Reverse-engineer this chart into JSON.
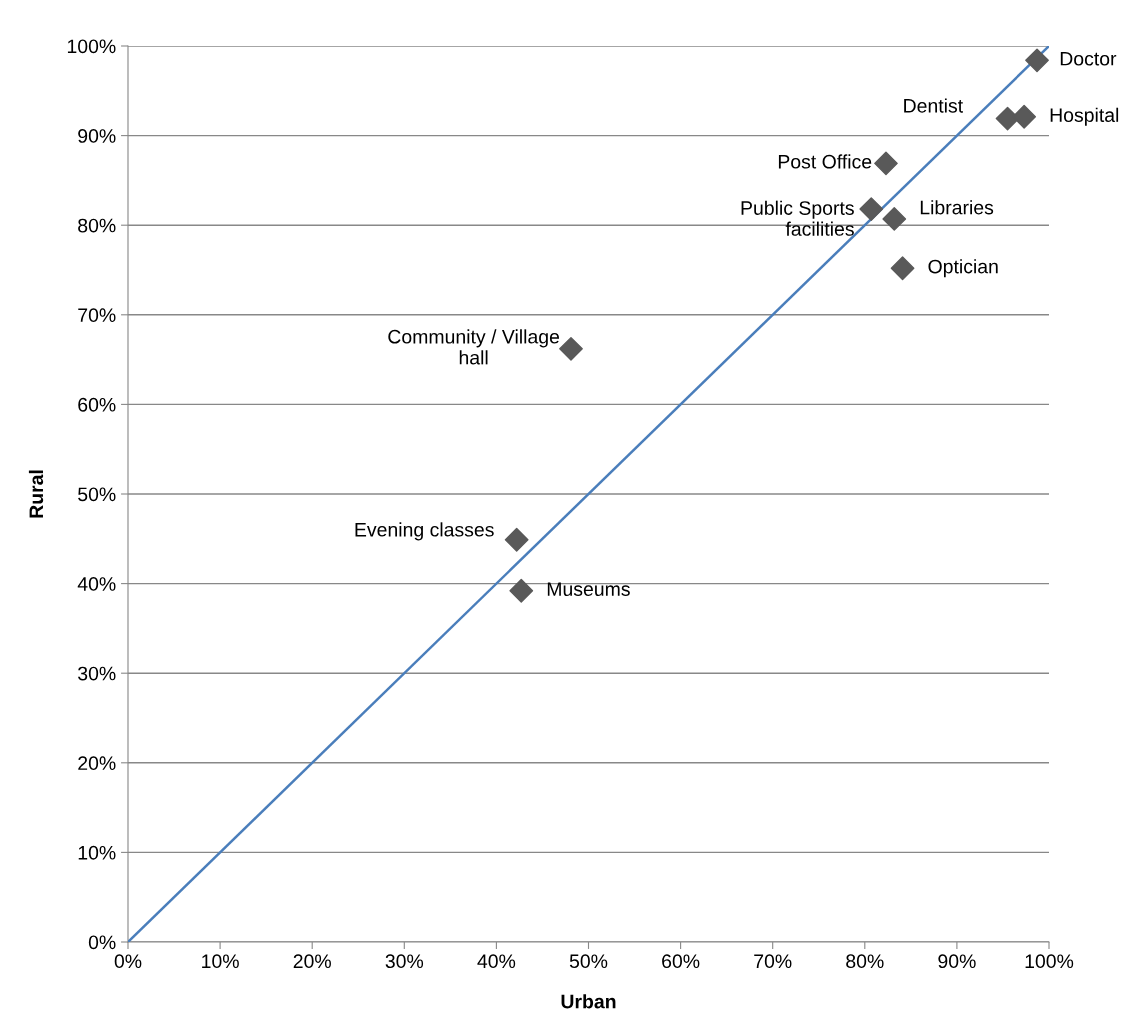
{
  "chart_data": {
    "type": "scatter",
    "xlabel": "Urban",
    "ylabel": "Rural",
    "xlim": [
      0,
      100
    ],
    "ylim": [
      0,
      100
    ],
    "xticks": [
      {
        "value": 0,
        "label": "0%"
      },
      {
        "value": 10,
        "label": "10%"
      },
      {
        "value": 20,
        "label": "20%"
      },
      {
        "value": 30,
        "label": "30%"
      },
      {
        "value": 40,
        "label": "40%"
      },
      {
        "value": 50,
        "label": "50%"
      },
      {
        "value": 60,
        "label": "60%"
      },
      {
        "value": 70,
        "label": "70%"
      },
      {
        "value": 80,
        "label": "80%"
      },
      {
        "value": 90,
        "label": "90%"
      },
      {
        "value": 100,
        "label": "100%"
      }
    ],
    "yticks": [
      {
        "value": 0,
        "label": "0%"
      },
      {
        "value": 10,
        "label": "10%"
      },
      {
        "value": 20,
        "label": "20%"
      },
      {
        "value": 30,
        "label": "30%"
      },
      {
        "value": 40,
        "label": "40%"
      },
      {
        "value": 50,
        "label": "50%"
      },
      {
        "value": 60,
        "label": "60%"
      },
      {
        "value": 70,
        "label": "70%"
      },
      {
        "value": 80,
        "label": "80%"
      },
      {
        "value": 90,
        "label": "90%"
      },
      {
        "value": 100,
        "label": "100%"
      }
    ],
    "grid": "y",
    "series": [
      {
        "type": "line",
        "color": "#4a7ebb",
        "x": [
          0,
          100
        ],
        "values": [
          0,
          100
        ],
        "marker": "none",
        "line_style": "solid"
      },
      {
        "color": "#595959",
        "marker": "diamond",
        "x": [
          98.7,
          95.5,
          97.3,
          82.3,
          80.7,
          83.2,
          84.1,
          48.1,
          42.2,
          42.7
        ],
        "values": [
          98.4,
          91.9,
          92.1,
          86.9,
          81.8,
          80.7,
          75.2,
          66.2,
          44.9,
          39.2
        ]
      }
    ],
    "annotations": [
      {
        "text": "Doctor",
        "x": 98.7,
        "y": 98.4
      },
      {
        "text": "Dentist",
        "x": 95.5,
        "y": 91.9
      },
      {
        "text": "Hospital",
        "x": 97.3,
        "y": 92.1
      },
      {
        "text": "Post Office",
        "x": 82.3,
        "y": 86.9
      },
      {
        "text": "Public Sports\nfacilities",
        "x": 80.7,
        "y": 81.8
      },
      {
        "text": "Libraries",
        "x": 83.2,
        "y": 80.7
      },
      {
        "text": "Optician",
        "x": 84.1,
        "y": 75.2
      },
      {
        "text": "Community / Village\nhall",
        "x": 48.1,
        "y": 66.2
      },
      {
        "text": "Evening classes",
        "x": 42.2,
        "y": 44.9
      },
      {
        "text": "Museums",
        "x": 42.7,
        "y": 39.2
      }
    ]
  }
}
